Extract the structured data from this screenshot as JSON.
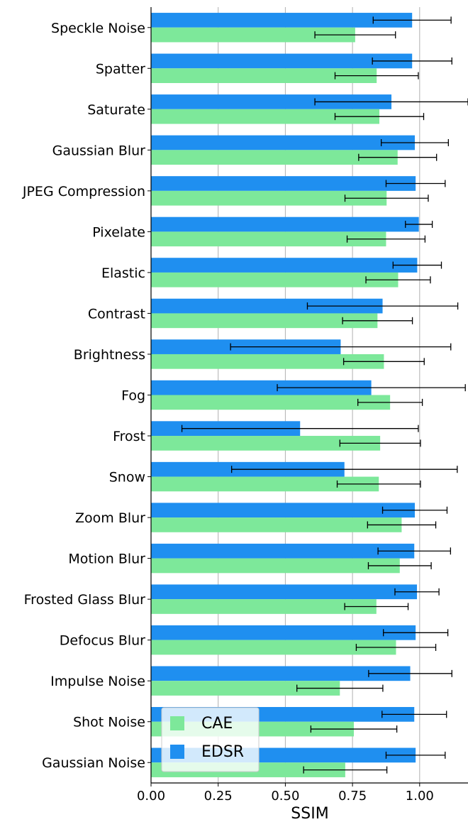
{
  "chart_data": {
    "type": "bar",
    "orientation": "horizontal",
    "xlabel": "SSIM",
    "ylabel": "",
    "xlim": [
      0.0,
      1.18
    ],
    "xticks": [
      0.0,
      0.25,
      0.5,
      0.75,
      1.0
    ],
    "xtick_labels": [
      "0.00",
      "0.25",
      "0.50",
      "0.75",
      "1.00"
    ],
    "grid": "vertical",
    "legend_position": "bottom-left",
    "colors": {
      "CAE": "#7de89a",
      "EDSR": "#1f8ff0"
    },
    "categories": [
      "Speckle Noise",
      "Spatter",
      "Saturate",
      "Gaussian Blur",
      "JPEG Compression",
      "Pixelate",
      "Elastic",
      "Contrast",
      "Brightness",
      "Fog",
      "Frost",
      "Snow",
      "Zoom Blur",
      "Motion Blur",
      "Frosted Glass Blur",
      "Defocus Blur",
      "Impulse Noise",
      "Shot Noise",
      "Gaussian Noise"
    ],
    "series": [
      {
        "name": "EDSR",
        "values": [
          0.972,
          0.972,
          0.895,
          0.982,
          0.985,
          0.997,
          0.991,
          0.862,
          0.706,
          0.82,
          0.555,
          0.72,
          0.982,
          0.98,
          0.99,
          0.985,
          0.965,
          0.98,
          0.985
        ],
        "errors": [
          0.145,
          0.148,
          0.285,
          0.125,
          0.11,
          0.05,
          0.09,
          0.28,
          0.41,
          0.35,
          0.44,
          0.42,
          0.12,
          0.135,
          0.082,
          0.12,
          0.155,
          0.12,
          0.11
        ]
      },
      {
        "name": "CAE",
        "values": [
          0.76,
          0.84,
          0.85,
          0.918,
          0.877,
          0.875,
          0.92,
          0.843,
          0.867,
          0.89,
          0.853,
          0.848,
          0.933,
          0.926,
          0.839,
          0.912,
          0.703,
          0.755,
          0.723
        ],
        "errors": [
          0.15,
          0.155,
          0.165,
          0.145,
          0.155,
          0.145,
          0.12,
          0.13,
          0.15,
          0.12,
          0.15,
          0.155,
          0.127,
          0.117,
          0.118,
          0.148,
          0.16,
          0.16,
          0.155
        ]
      }
    ]
  }
}
